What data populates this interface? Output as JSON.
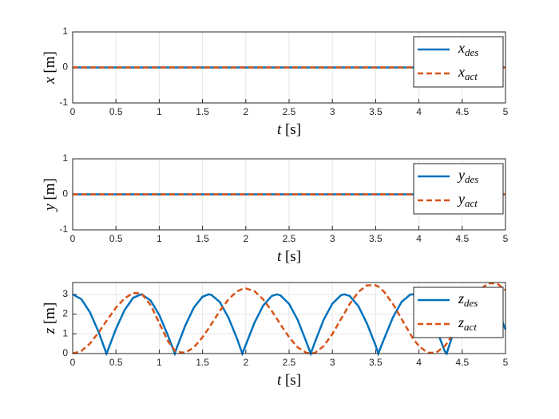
{
  "chart_data": [
    {
      "type": "line",
      "ylabel": "x [m]",
      "xlabel": "t [s]",
      "x": [
        0,
        5
      ],
      "series": [
        {
          "name": "x_des",
          "color": "#0072BD",
          "values": [
            0,
            0
          ]
        },
        {
          "name": "x_act",
          "color": "#D95319",
          "values": [
            0,
            0
          ]
        }
      ],
      "xlim": [
        0,
        5
      ],
      "ylim": [
        -1,
        1
      ],
      "xticks": [
        0,
        0.5,
        1,
        1.5,
        2,
        2.5,
        3,
        3.5,
        4,
        4.5,
        5
      ],
      "yticks": [
        -1,
        0,
        1
      ],
      "grid": true,
      "legend": "upper right"
    },
    {
      "type": "line",
      "ylabel": "y [m]",
      "xlabel": "t [s]",
      "x": [
        0,
        5
      ],
      "series": [
        {
          "name": "y_des",
          "color": "#0072BD",
          "values": [
            0,
            0
          ]
        },
        {
          "name": "y_act",
          "color": "#D95319",
          "values": [
            0,
            0
          ]
        }
      ],
      "xlim": [
        0,
        5
      ],
      "ylim": [
        -1,
        1
      ],
      "xticks": [
        0,
        0.5,
        1,
        1.5,
        2,
        2.5,
        3,
        3.5,
        4,
        4.5,
        5
      ],
      "yticks": [
        -1,
        0,
        1
      ],
      "grid": true,
      "legend": "upper right"
    },
    {
      "type": "line",
      "ylabel": "z [m]",
      "xlabel": "t [s]",
      "x": [
        0,
        0.1,
        0.2,
        0.3,
        0.39,
        0.4,
        0.5,
        0.6,
        0.7,
        0.79,
        0.8,
        0.9,
        1.0,
        1.1,
        1.18,
        1.2,
        1.3,
        1.4,
        1.5,
        1.57,
        1.6,
        1.7,
        1.8,
        1.9,
        1.96,
        2.0,
        2.1,
        2.2,
        2.3,
        2.36,
        2.4,
        2.5,
        2.6,
        2.7,
        2.75,
        2.8,
        2.9,
        3.0,
        3.1,
        3.14,
        3.2,
        3.3,
        3.4,
        3.5,
        3.53,
        3.6,
        3.7,
        3.8,
        3.9,
        3.93,
        4.0,
        4.1,
        4.2,
        4.3,
        4.32,
        4.4,
        4.5,
        4.6,
        4.7,
        4.71,
        4.8,
        4.9,
        5.0
      ],
      "series": [
        {
          "name": "z_des",
          "color": "#0072BD",
          "values": [
            3,
            2.76,
            2.09,
            1.09,
            0,
            0.09,
            1.25,
            2.21,
            2.83,
            3,
            2.99,
            2.69,
            1.96,
            0.92,
            0,
            0.26,
            1.41,
            2.33,
            2.88,
            3,
            2.98,
            2.61,
            1.82,
            0.74,
            0,
            0.44,
            1.56,
            2.43,
            2.92,
            3,
            2.95,
            2.52,
            1.7,
            0.58,
            0,
            0.6,
            1.72,
            2.53,
            2.96,
            3,
            2.92,
            2.41,
            1.52,
            0.41,
            0,
            0.77,
            1.84,
            2.62,
            2.99,
            3,
            2.87,
            2.26,
            1.26,
            0.1,
            0,
            1.08,
            1.98,
            2.67,
            2.99,
            3,
            2.84,
            2.34,
            1.22
          ]
        },
        {
          "name": "z_act",
          "color": "#D95319",
          "values": [
            0,
            0.13,
            0.51,
            1.07,
            1.65,
            1.71,
            2.33,
            2.8,
            3.07,
            3.05,
            3.02,
            2.46,
            1.55,
            0.64,
            0.15,
            0.08,
            0.04,
            0.31,
            0.83,
            1.27,
            1.48,
            2.16,
            2.75,
            3.16,
            3.27,
            3.3,
            3.16,
            2.75,
            2.16,
            1.76,
            1.48,
            0.83,
            0.31,
            0.04,
            0,
            0.04,
            0.38,
            0.99,
            1.75,
            2.05,
            2.51,
            3.12,
            3.46,
            3.46,
            3.4,
            3.12,
            2.51,
            1.75,
            0.99,
            0.77,
            0.38,
            0.04,
            0.05,
            0.39,
            0.5,
            1.02,
            1.8,
            2.58,
            3.21,
            3.25,
            3.56,
            3.56,
            3.21
          ]
        }
      ],
      "xlim": [
        0,
        5
      ],
      "ylim": [
        0,
        3.6
      ],
      "xticks": [
        0,
        0.5,
        1,
        1.5,
        2,
        2.5,
        3,
        3.5,
        4,
        4.5,
        5
      ],
      "yticks": [
        0,
        1,
        2,
        3
      ],
      "grid": true,
      "legend": "upper right"
    }
  ]
}
